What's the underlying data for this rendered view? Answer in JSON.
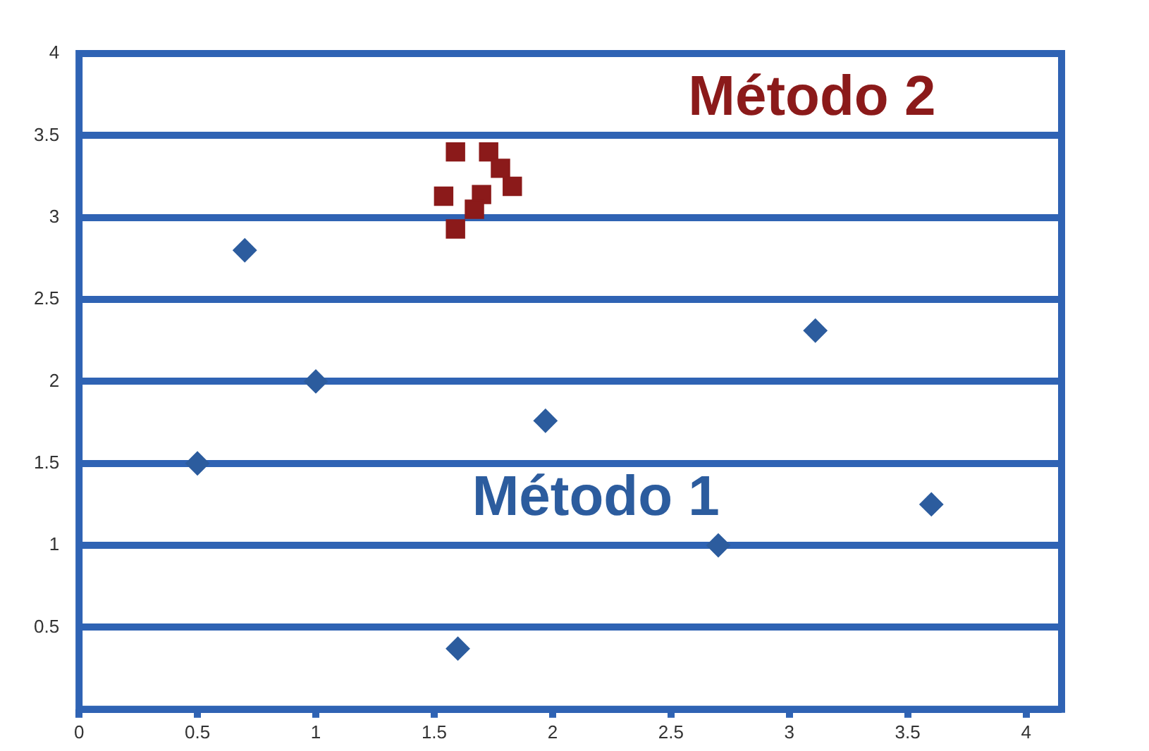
{
  "chart_data": {
    "type": "scatter",
    "xlim": [
      0,
      4.15
    ],
    "ylim": [
      0,
      4
    ],
    "xticks": [
      0,
      0.5,
      1,
      1.5,
      2,
      2.5,
      3,
      3.5,
      4
    ],
    "yticks": [
      {
        "value": 0,
        "label": null
      },
      0.5,
      1,
      1.5,
      2,
      2.5,
      3,
      3.5,
      4
    ],
    "grid": "y",
    "legend": false,
    "series": [
      {
        "name": "Método 1",
        "color": "#2c5c9e",
        "marker": "diamond",
        "x": [
          0.5,
          0.7,
          1.0,
          1.6,
          1.97,
          2.7,
          3.11,
          3.6
        ],
        "values": [
          1.5,
          2.8,
          2.0,
          0.37,
          1.76,
          1.0,
          2.31,
          1.25
        ]
      },
      {
        "name": "Método 2",
        "color": "#8b1a1a",
        "marker": "square",
        "x": [
          1.59,
          1.73,
          1.78,
          1.83,
          1.54,
          1.7,
          1.67,
          1.59
        ],
        "values": [
          3.4,
          3.4,
          3.3,
          3.19,
          3.13,
          3.14,
          3.05,
          2.93
        ]
      }
    ]
  }
}
